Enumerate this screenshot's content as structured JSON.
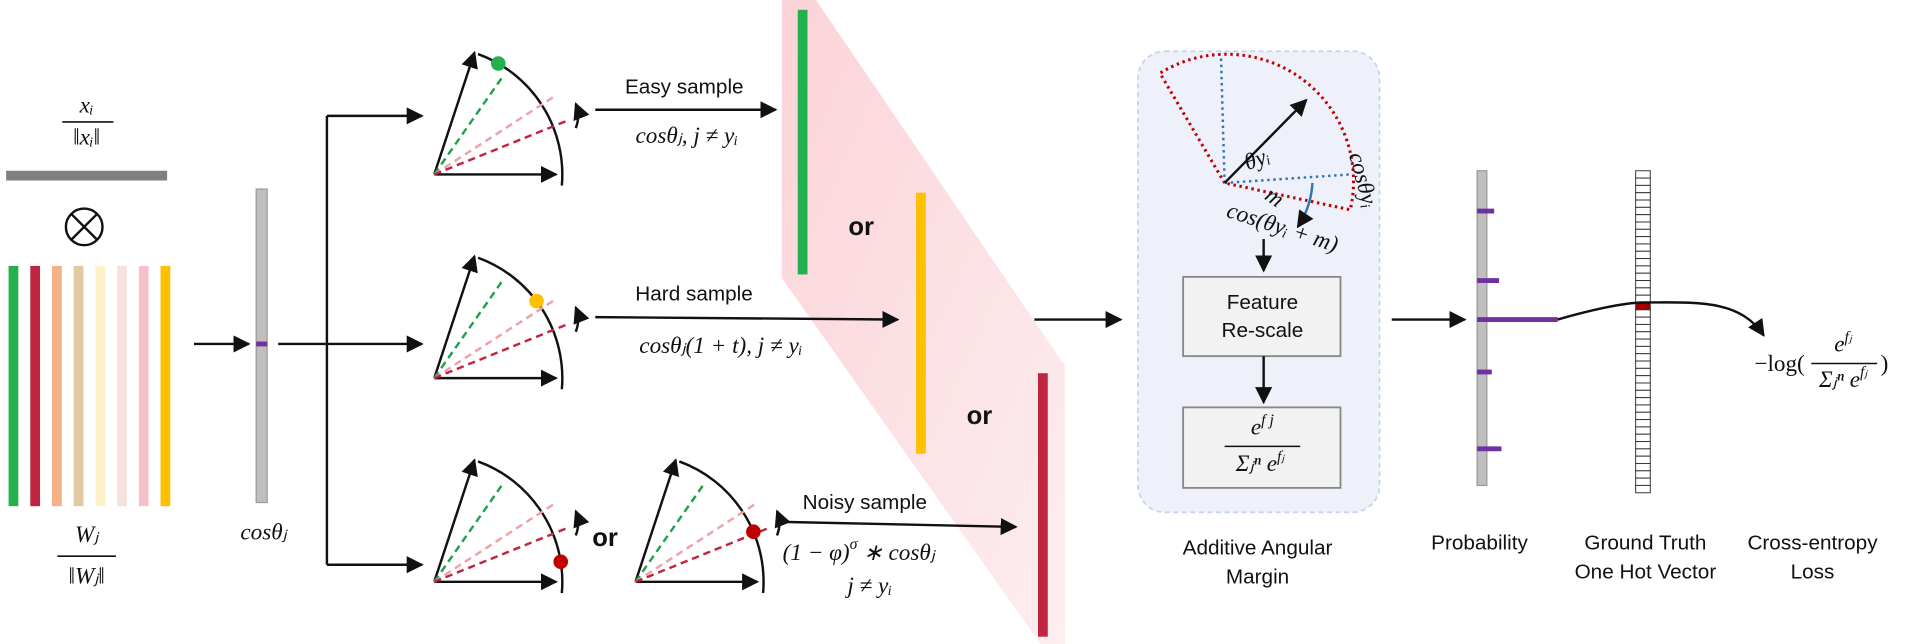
{
  "input": {
    "feature_num": "xᵢ",
    "feature_den": "‖xᵢ‖",
    "weight_num": "Wⱼ",
    "weight_den": "‖Wⱼ‖",
    "cosine": "cosθⱼ"
  },
  "samples": [
    {
      "label": "Easy sample",
      "formula": "cosθⱼ, j ≠ yᵢ"
    },
    {
      "label": "Hard sample",
      "formula": "cosθⱼ(1 + t), j ≠ yᵢ"
    },
    {
      "label": "Noisy sample",
      "formula_base": "(1 − φ)",
      "formula_sup": "σ",
      "formula_rest": " ∗ cosθⱼ",
      "condition": "j ≠ yᵢ"
    }
  ],
  "or_labels": [
    "or",
    "or",
    "or"
  ],
  "margin": {
    "theta": "θyᵢ",
    "m": "m",
    "cos_theta": "cosθyᵢ",
    "cos_margin": "cos(θyᵢ + m)",
    "box_line1": "Feature",
    "box_line2": "Re-scale",
    "softmax_num_base": "e",
    "softmax_num_sup": "f j",
    "softmax_den_base": "Σⱼⁿ e",
    "softmax_den_sup": "fⱼ",
    "caption_line1": "Additive Angular",
    "caption_line2": "Margin"
  },
  "outputs": {
    "probability": "Probability",
    "truth_line1": "Ground Truth",
    "truth_line2": "One Hot Vector",
    "loss_line1": "Cross-entropy",
    "loss_line2": "Loss",
    "loss_prefix": "−log(",
    "loss_num_base": "e",
    "loss_num_sup": "fⱼ",
    "loss_den_base": "Σⱼⁿ e",
    "loss_den_sup": "fⱼ",
    "loss_suffix": ")"
  }
}
